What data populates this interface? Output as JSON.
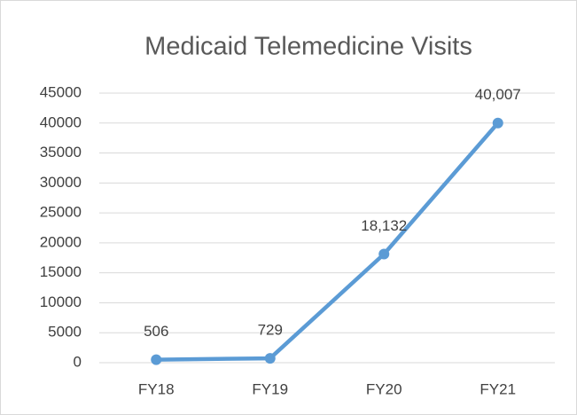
{
  "chart_data": {
    "type": "line",
    "title": "Medicaid Telemedicine Visits",
    "categories": [
      "FY18",
      "FY19",
      "FY20",
      "FY21"
    ],
    "values": [
      506,
      729,
      18132,
      40007
    ],
    "value_labels": [
      "506",
      "729",
      "18,132",
      "40,007"
    ],
    "color": "#5b9bd5",
    "ylim": [
      0,
      45000
    ],
    "yticks": [
      0,
      5000,
      10000,
      15000,
      20000,
      25000,
      30000,
      35000,
      40000,
      45000
    ],
    "grid": true
  }
}
